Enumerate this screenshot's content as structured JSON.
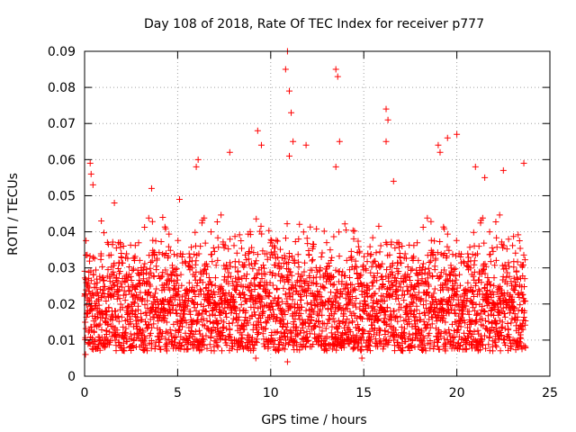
{
  "chart_data": {
    "type": "scatter",
    "title": "Day 108 of 2018, Rate Of TEC Index for receiver p777",
    "xlabel": "GPS time / hours",
    "ylabel": "ROTI / TECUs",
    "xlim": [
      0,
      25
    ],
    "ylim": [
      0,
      0.09
    ],
    "x_ticks": [
      0,
      5,
      10,
      15,
      20,
      25
    ],
    "y_ticks": [
      0,
      0.01,
      0.02,
      0.03,
      0.04,
      0.05,
      0.06,
      0.07,
      0.08,
      0.09
    ],
    "x_tick_labels": [
      "0",
      "5",
      "10",
      "15",
      "20",
      "25"
    ],
    "y_tick_labels": [
      "0",
      "0.01",
      "0.02",
      "0.03",
      "0.04",
      "0.05",
      "0.06",
      "0.07",
      "0.08",
      "0.09"
    ],
    "grid": true,
    "marker": "+",
    "marker_color": "#ff0000",
    "series": [
      {
        "name": "ROTI",
        "x_range": [
          0,
          23.7
        ],
        "baseline_range": [
          0.007,
          0.045
        ],
        "typical_value": 0.019,
        "outliers": [
          [
            0.05,
            0.006
          ],
          [
            0.3,
            0.059
          ],
          [
            0.35,
            0.056
          ],
          [
            0.45,
            0.053
          ],
          [
            0.9,
            0.043
          ],
          [
            1.6,
            0.048
          ],
          [
            3.6,
            0.052
          ],
          [
            4.2,
            0.044
          ],
          [
            5.1,
            0.049
          ],
          [
            6.0,
            0.058
          ],
          [
            6.1,
            0.06
          ],
          [
            7.8,
            0.062
          ],
          [
            9.3,
            0.068
          ],
          [
            9.5,
            0.064
          ],
          [
            10.8,
            0.085
          ],
          [
            10.9,
            0.09
          ],
          [
            11.0,
            0.079
          ],
          [
            11.1,
            0.073
          ],
          [
            11.2,
            0.065
          ],
          [
            11.0,
            0.061
          ],
          [
            11.9,
            0.064
          ],
          [
            13.5,
            0.085
          ],
          [
            13.6,
            0.083
          ],
          [
            13.7,
            0.065
          ],
          [
            13.5,
            0.058
          ],
          [
            16.2,
            0.074
          ],
          [
            16.3,
            0.071
          ],
          [
            16.2,
            0.065
          ],
          [
            16.6,
            0.054
          ],
          [
            19.0,
            0.064
          ],
          [
            19.1,
            0.062
          ],
          [
            19.5,
            0.066
          ],
          [
            20.0,
            0.067
          ],
          [
            21.0,
            0.058
          ],
          [
            21.5,
            0.055
          ],
          [
            22.5,
            0.057
          ],
          [
            23.6,
            0.059
          ],
          [
            10.9,
            0.004
          ],
          [
            9.2,
            0.005
          ],
          [
            14.9,
            0.005
          ]
        ]
      }
    ]
  }
}
